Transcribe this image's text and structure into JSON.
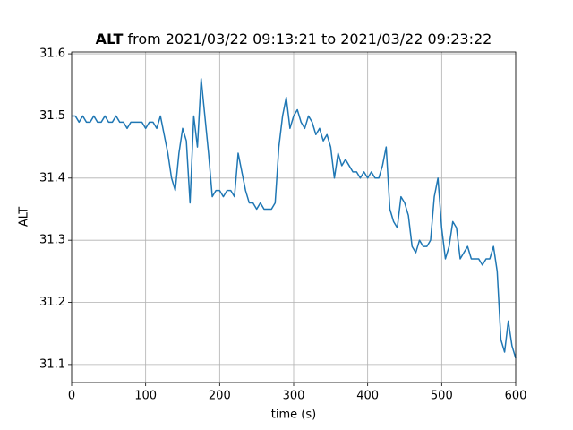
{
  "chart_data": {
    "type": "line",
    "title": {
      "name": "ALT",
      "range": "from 2021/03/22 09:13:21 to 2021/03/22 09:23:22"
    },
    "x_label": "time (s)",
    "y_label": "ALT",
    "x": [
      0,
      5,
      10,
      15,
      20,
      25,
      30,
      35,
      40,
      45,
      50,
      55,
      60,
      65,
      70,
      75,
      80,
      85,
      90,
      95,
      100,
      105,
      110,
      115,
      120,
      125,
      130,
      135,
      140,
      145,
      150,
      155,
      160,
      165,
      170,
      175,
      180,
      185,
      190,
      195,
      200,
      205,
      210,
      215,
      220,
      225,
      230,
      235,
      240,
      245,
      250,
      255,
      260,
      265,
      270,
      275,
      280,
      285,
      290,
      295,
      300,
      305,
      310,
      315,
      320,
      325,
      330,
      335,
      340,
      345,
      350,
      355,
      360,
      365,
      370,
      375,
      380,
      385,
      390,
      395,
      400,
      405,
      410,
      415,
      420,
      425,
      430,
      435,
      440,
      445,
      450,
      455,
      460,
      465,
      470,
      475,
      480,
      485,
      490,
      495,
      500,
      505,
      510,
      515,
      520,
      525,
      530,
      535,
      540,
      545,
      550,
      555,
      560,
      565,
      570,
      575,
      580,
      585,
      590,
      595,
      600
    ],
    "series": [
      {
        "name": "ALT",
        "color": "#1f77b4",
        "values": [
          31.5,
          31.5,
          31.49,
          31.5,
          31.49,
          31.49,
          31.5,
          31.49,
          31.49,
          31.5,
          31.49,
          31.49,
          31.5,
          31.49,
          31.49,
          31.48,
          31.49,
          31.49,
          31.49,
          31.49,
          31.48,
          31.49,
          31.49,
          31.48,
          31.5,
          31.47,
          31.44,
          31.4,
          31.38,
          31.44,
          31.48,
          31.46,
          31.36,
          31.5,
          31.45,
          31.56,
          31.5,
          31.44,
          31.37,
          31.38,
          31.38,
          31.37,
          31.38,
          31.38,
          31.37,
          31.44,
          31.41,
          31.38,
          31.36,
          31.36,
          31.35,
          31.36,
          31.35,
          31.35,
          31.35,
          31.36,
          31.45,
          31.5,
          31.53,
          31.48,
          31.5,
          31.51,
          31.49,
          31.48,
          31.5,
          31.49,
          31.47,
          31.48,
          31.46,
          31.47,
          31.45,
          31.4,
          31.44,
          31.42,
          31.43,
          31.42,
          31.41,
          31.41,
          31.4,
          31.41,
          31.4,
          31.41,
          31.4,
          31.4,
          31.42,
          31.45,
          31.35,
          31.33,
          31.32,
          31.37,
          31.36,
          31.34,
          31.29,
          31.28,
          31.3,
          31.29,
          31.29,
          31.3,
          31.37,
          31.4,
          31.32,
          31.27,
          31.29,
          31.33,
          31.32,
          31.27,
          31.28,
          31.29,
          31.27,
          31.27,
          31.27,
          31.26,
          31.27,
          31.27,
          31.29,
          31.25,
          31.14,
          31.12,
          31.17,
          31.13,
          31.11
        ]
      }
    ],
    "xlim": [
      0,
      600
    ],
    "xticks": [
      0,
      100,
      200,
      300,
      400,
      500,
      600
    ],
    "ylim": [
      31.071,
      31.603
    ],
    "yticks": [
      31.1,
      31.2,
      31.3,
      31.4,
      31.5,
      31.6
    ],
    "grid": true
  }
}
